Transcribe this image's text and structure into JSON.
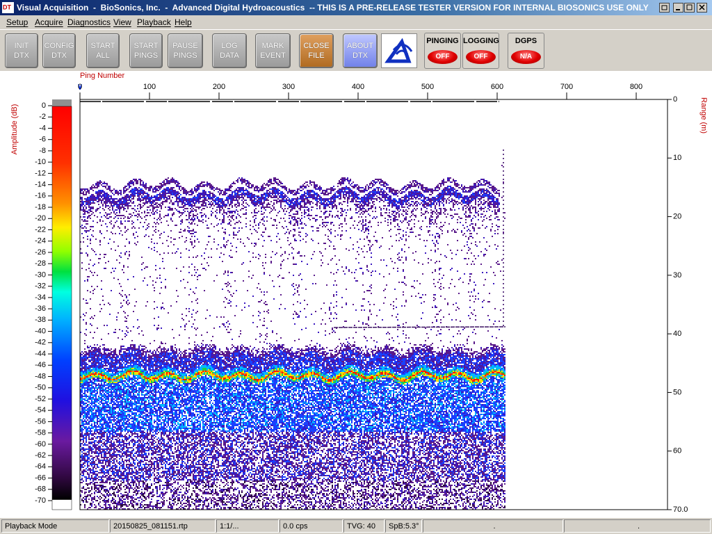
{
  "title_bar": {
    "title": "Visual Acquisition  -  BioSonics, Inc.  -  Advanced Digital Hydroacoustics  -- THIS IS A PRE-RELEASE TESTER VERSION FOR INTERNAL BIOSONICS USE ONLY"
  },
  "menu": [
    "Setup",
    "Acquire",
    "Diagnostics",
    "View",
    "Playback",
    "Help"
  ],
  "toolbar": {
    "buttons": [
      {
        "lines": [
          "INIT",
          "DTX"
        ]
      },
      {
        "lines": [
          "CONFIG",
          "DTX"
        ]
      },
      {
        "lines": [
          "START",
          "ALL"
        ]
      },
      {
        "lines": [
          "START",
          "PINGS"
        ]
      },
      {
        "lines": [
          "PAUSE",
          "PINGS"
        ]
      },
      {
        "lines": [
          "LOG",
          "DATA"
        ]
      },
      {
        "lines": [
          "MARK",
          "EVENT"
        ]
      },
      {
        "lines": [
          "CLOSE",
          "FILE"
        ]
      },
      {
        "lines": [
          "ABOUT",
          "DTX"
        ]
      }
    ],
    "indicators": [
      {
        "label": "PINGING",
        "state": "OFF"
      },
      {
        "label": "LOGGING",
        "state": "OFF"
      },
      {
        "label": "DGPS",
        "state": "N/A"
      }
    ]
  },
  "echogram": {
    "ping_axis": {
      "label": "Ping Number",
      "lim": [
        0,
        845
      ],
      "ticks": [
        0,
        100,
        200,
        300,
        400,
        500,
        600,
        700,
        800
      ]
    },
    "range_axis": {
      "label": "Range (m)",
      "lim": [
        0,
        70
      ],
      "ticks": [
        0,
        10,
        20,
        30,
        40,
        50,
        60,
        {
          "value": 70,
          "label": "70.0"
        }
      ]
    },
    "amplitude_scale": {
      "label": "Amplitude (dB)",
      "lim": [
        0,
        -70
      ],
      "ticks": [
        0,
        -2,
        -4,
        -6,
        -8,
        -10,
        -12,
        -14,
        -16,
        -18,
        -20,
        -22,
        -24,
        -26,
        -28,
        -30,
        -32,
        -34,
        -36,
        -38,
        -40,
        -42,
        -44,
        -46,
        -48,
        -50,
        -52,
        -54,
        -56,
        -58,
        -60,
        -62,
        -64,
        -66,
        -68,
        -70
      ]
    }
  },
  "status_bar": [
    "Playback Mode",
    "20150825_081151.rtp",
    "1:1/...",
    "0.0 cps",
    "TVG: 40",
    "SpB:5.3°",
    ".",
    "."
  ]
}
